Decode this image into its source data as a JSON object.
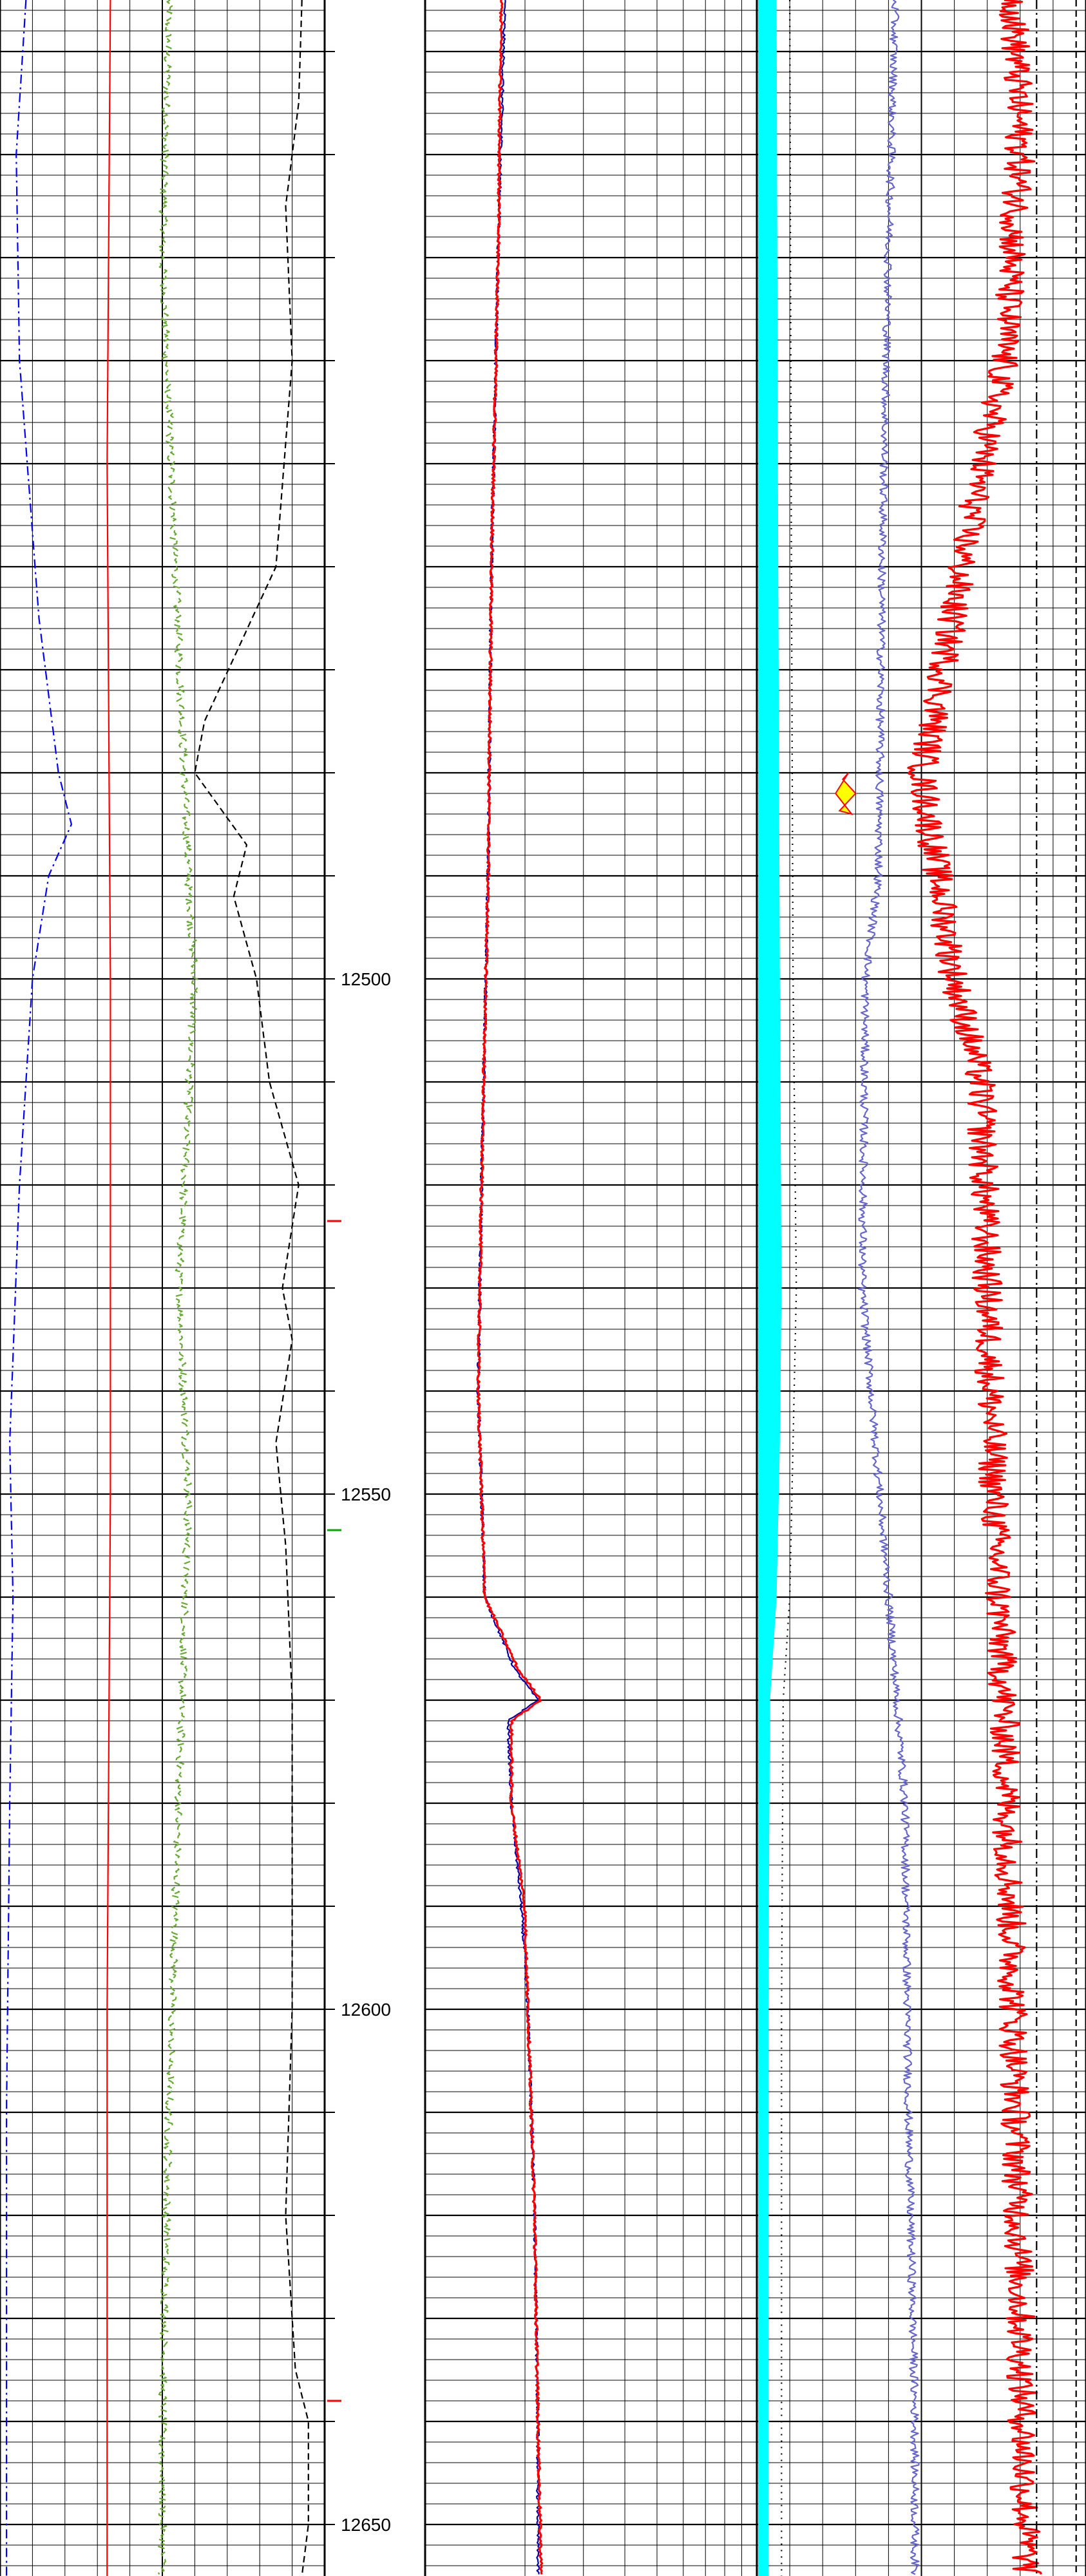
{
  "chart_data": {
    "type": "line",
    "title": "",
    "depth_axis": {
      "range": [
        12405,
        12655
      ],
      "tick_labels": [
        "12500",
        "12550",
        "12600",
        "12650"
      ],
      "tick_values": [
        12500,
        12550,
        12600,
        12650
      ]
    },
    "tracks": [
      {
        "name": "",
        "scale": "linear",
        "series": [
          {
            "color": "#0000ff",
            "style": "dash-dot",
            "depth": [
              12405,
              12420,
              12440,
              12465,
              12480,
              12485,
              12490,
              12500,
              12520,
              12545,
              12560,
              12580,
              12610,
              12640,
              12655
            ],
            "value": [
              0.08,
              0.05,
              0.06,
              0.12,
              0.18,
              0.22,
              0.15,
              0.1,
              0.06,
              0.03,
              0.04,
              0.03,
              0.02,
              0.02,
              0.02
            ]
          },
          {
            "color": "#ff0000",
            "style": "solid",
            "depth": [
              12405,
              12450,
              12500,
              12550,
              12600,
              12655
            ],
            "value": [
              0.34,
              0.33,
              0.34,
              0.34,
              0.33,
              0.33
            ]
          },
          {
            "color": "#66aa33",
            "style": "dashed-noisy",
            "depth": [
              12405,
              12430,
              12460,
              12490,
              12500,
              12530,
              12550,
              12580,
              12610,
              12640,
              12655
            ],
            "value": [
              0.52,
              0.5,
              0.54,
              0.58,
              0.6,
              0.55,
              0.58,
              0.55,
              0.52,
              0.5,
              0.5
            ]
          },
          {
            "color": "#000000",
            "style": "dashed",
            "depth": [
              12405,
              12415,
              12425,
              12440,
              12460,
              12475,
              12480,
              12487,
              12492,
              12500,
              12510,
              12520,
              12530,
              12535,
              12545,
              12555,
              12570,
              12600,
              12620,
              12635,
              12640,
              12650,
              12655
            ],
            "value": [
              0.93,
              0.92,
              0.88,
              0.9,
              0.85,
              0.63,
              0.6,
              0.76,
              0.72,
              0.79,
              0.83,
              0.92,
              0.87,
              0.9,
              0.85,
              0.88,
              0.9,
              0.9,
              0.88,
              0.91,
              0.95,
              0.95,
              0.93
            ]
          }
        ]
      },
      {
        "name": "",
        "scale": "log",
        "decades": 1,
        "series": [
          {
            "color": "#0000aa",
            "style": "solid",
            "depth": [
              12405,
              12430,
              12460,
              12490,
              12520,
              12540,
              12560,
              12567,
              12570,
              12572,
              12580,
              12590,
              12600,
              12620,
              12640,
              12655
            ],
            "value": [
              0.24,
              0.22,
              0.2,
              0.19,
              0.17,
              0.16,
              0.18,
              0.27,
              0.34,
              0.25,
              0.26,
              0.29,
              0.31,
              0.33,
              0.34,
              0.34
            ]
          },
          {
            "color": "#ff0000",
            "style": "solid",
            "depth": [
              12405,
              12430,
              12460,
              12490,
              12520,
              12540,
              12560,
              12567,
              12570,
              12572,
              12580,
              12590,
              12600,
              12620,
              12640,
              12655
            ],
            "value": [
              0.23,
              0.22,
              0.2,
              0.19,
              0.17,
              0.16,
              0.18,
              0.28,
              0.35,
              0.26,
              0.26,
              0.3,
              0.31,
              0.33,
              0.34,
              0.35
            ]
          }
        ]
      },
      {
        "name": "",
        "scale": "linear",
        "series": [
          {
            "color": "#00ffff",
            "style": "filled-band",
            "depth": [
              12405,
              12460,
              12500,
              12530,
              12545,
              12560,
              12570,
              12600,
              12655
            ],
            "left": [
              0.0,
              0.0,
              0.0,
              0.0,
              0.0,
              0.0,
              0.0,
              0.0,
              0.0
            ],
            "right": [
              0.06,
              0.065,
              0.07,
              0.075,
              0.07,
              0.06,
              0.04,
              0.035,
              0.035
            ]
          },
          {
            "color": "#000000",
            "style": "dotted",
            "depth": [
              12405,
              12460,
              12500,
              12530,
              12545,
              12560,
              12570,
              12600,
              12655
            ],
            "value": [
              0.1,
              0.105,
              0.11,
              0.12,
              0.11,
              0.1,
              0.08,
              0.075,
              0.075
            ]
          },
          {
            "color": "#6666cc",
            "style": "solid-noisy",
            "depth": [
              12405,
              12430,
              12460,
              12490,
              12500,
              12530,
              12560,
              12580,
              12610,
              12640,
              12655
            ],
            "value": [
              0.42,
              0.4,
              0.38,
              0.37,
              0.33,
              0.32,
              0.4,
              0.45,
              0.46,
              0.48,
              0.48
            ]
          },
          {
            "color": "#ff0000",
            "style": "solid-noisy",
            "depth": [
              12405,
              12420,
              12440,
              12460,
              12475,
              12480,
              12490,
              12500,
              12510,
              12530,
              12550,
              12570,
              12600,
              12630,
              12655
            ],
            "value": [
              0.78,
              0.8,
              0.75,
              0.62,
              0.54,
              0.5,
              0.55,
              0.6,
              0.68,
              0.7,
              0.72,
              0.75,
              0.78,
              0.8,
              0.82
            ]
          },
          {
            "color": "#000000",
            "style": "dash-dot",
            "depth": [
              12405,
              12500,
              12600,
              12655
            ],
            "value": [
              0.85,
              0.85,
              0.85,
              0.85
            ]
          },
          {
            "color": "#000000",
            "style": "dashed",
            "depth": [
              12405,
              12500,
              12600,
              12655
            ],
            "value": [
              0.97,
              0.97,
              0.97,
              0.97
            ]
          }
        ],
        "fill_annotations": [
          {
            "color": "#ffff00",
            "depth": [
              12480,
              12484
            ],
            "value_range": [
              0.2,
              0.3
            ]
          }
        ]
      }
    ],
    "grid": true,
    "legend": "none"
  }
}
